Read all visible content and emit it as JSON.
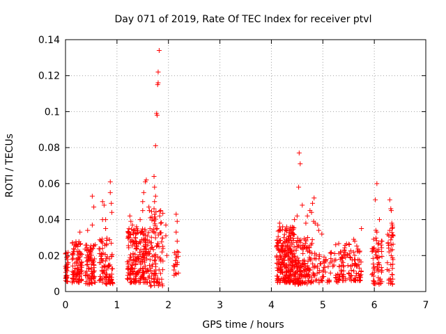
{
  "chart_data": {
    "type": "scatter",
    "title": "Day 071 of 2019, Rate Of TEC Index for receiver ptvl",
    "xlabel": "GPS time / hours",
    "ylabel": "ROTI / TECUs",
    "xlim": [
      0,
      7
    ],
    "ylim": [
      0,
      0.14
    ],
    "xticks": [
      "0",
      "1",
      "2",
      "3",
      "4",
      "5",
      "6",
      "7"
    ],
    "yticks": [
      "0",
      "0.02",
      "0.04",
      "0.06",
      "0.08",
      "0.1",
      "0.12",
      "0.14"
    ],
    "grid": true,
    "marker": "+",
    "color": "#ff0000",
    "clusters": [
      {
        "x": [
          0.0,
          0.05
        ],
        "y": [
          0.005,
          0.022
        ],
        "n": 30
      },
      {
        "x": [
          0.12,
          0.32
        ],
        "y": [
          0.005,
          0.028
        ],
        "n": 90
      },
      {
        "x": [
          0.38,
          0.58
        ],
        "y": [
          0.004,
          0.026
        ],
        "n": 80
      },
      {
        "x": [
          0.65,
          0.92
        ],
        "y": [
          0.004,
          0.03
        ],
        "n": 90
      },
      {
        "x": [
          1.2,
          1.65
        ],
        "y": [
          0.005,
          0.035
        ],
        "n": 220
      },
      {
        "x": [
          1.65,
          1.9
        ],
        "y": [
          0.003,
          0.045
        ],
        "n": 90
      },
      {
        "x": [
          2.1,
          2.2
        ],
        "y": [
          0.009,
          0.025
        ],
        "n": 18
      },
      {
        "x": [
          4.1,
          4.45
        ],
        "y": [
          0.005,
          0.036
        ],
        "n": 240
      },
      {
        "x": [
          4.45,
          4.85
        ],
        "y": [
          0.004,
          0.03
        ],
        "n": 160
      },
      {
        "x": [
          4.85,
          5.3
        ],
        "y": [
          0.005,
          0.022
        ],
        "n": 60
      },
      {
        "x": [
          5.3,
          5.75
        ],
        "y": [
          0.006,
          0.028
        ],
        "n": 110
      },
      {
        "x": [
          5.95,
          6.15
        ],
        "y": [
          0.004,
          0.03
        ],
        "n": 60
      },
      {
        "x": [
          6.25,
          6.38
        ],
        "y": [
          0.004,
          0.036
        ],
        "n": 40
      }
    ],
    "points": [
      [
        0.0,
        0.014
      ],
      [
        0.02,
        0.019
      ],
      [
        0.0,
        0.021
      ],
      [
        0.03,
        0.009
      ],
      [
        0.02,
        0.012
      ],
      [
        0.28,
        0.033
      ],
      [
        0.43,
        0.034
      ],
      [
        0.52,
        0.053
      ],
      [
        0.55,
        0.047
      ],
      [
        0.52,
        0.037
      ],
      [
        0.72,
        0.05
      ],
      [
        0.75,
        0.048
      ],
      [
        0.72,
        0.04
      ],
      [
        0.78,
        0.035
      ],
      [
        0.78,
        0.04
      ],
      [
        0.87,
        0.061
      ],
      [
        0.87,
        0.055
      ],
      [
        0.89,
        0.049
      ],
      [
        0.9,
        0.044
      ],
      [
        1.25,
        0.042
      ],
      [
        1.27,
        0.039
      ],
      [
        1.3,
        0.037
      ],
      [
        1.38,
        0.036
      ],
      [
        1.45,
        0.04
      ],
      [
        1.5,
        0.045
      ],
      [
        1.5,
        0.05
      ],
      [
        1.52,
        0.055
      ],
      [
        1.55,
        0.061
      ],
      [
        1.57,
        0.062
      ],
      [
        1.62,
        0.047
      ],
      [
        1.63,
        0.045
      ],
      [
        1.65,
        0.041
      ],
      [
        1.72,
        0.064
      ],
      [
        1.73,
        0.058
      ],
      [
        1.75,
        0.053
      ],
      [
        1.73,
        0.05
      ],
      [
        1.72,
        0.046
      ],
      [
        1.75,
        0.081
      ],
      [
        1.77,
        0.099
      ],
      [
        1.78,
        0.098
      ],
      [
        1.79,
        0.115
      ],
      [
        1.8,
        0.116
      ],
      [
        1.8,
        0.122
      ],
      [
        1.82,
        0.134
      ],
      [
        1.83,
        0.042
      ],
      [
        1.85,
        0.045
      ],
      [
        1.85,
        0.038
      ],
      [
        1.95,
        0.031
      ],
      [
        1.95,
        0.037
      ],
      [
        1.97,
        0.02
      ],
      [
        2.15,
        0.043
      ],
      [
        2.17,
        0.039
      ],
      [
        2.15,
        0.033
      ],
      [
        2.17,
        0.028
      ],
      [
        4.16,
        0.038
      ],
      [
        4.22,
        0.036
      ],
      [
        4.3,
        0.035
      ],
      [
        4.35,
        0.034
      ],
      [
        4.42,
        0.032
      ],
      [
        4.45,
        0.04
      ],
      [
        4.5,
        0.042
      ],
      [
        4.53,
        0.058
      ],
      [
        4.54,
        0.077
      ],
      [
        4.56,
        0.071
      ],
      [
        4.6,
        0.048
      ],
      [
        4.67,
        0.038
      ],
      [
        4.7,
        0.042
      ],
      [
        4.75,
        0.045
      ],
      [
        4.78,
        0.044
      ],
      [
        4.8,
        0.049
      ],
      [
        4.83,
        0.052
      ],
      [
        4.82,
        0.039
      ],
      [
        4.85,
        0.038
      ],
      [
        4.9,
        0.037
      ],
      [
        4.92,
        0.034
      ],
      [
        4.98,
        0.032
      ],
      [
        5.25,
        0.026
      ],
      [
        5.35,
        0.022
      ],
      [
        5.6,
        0.029
      ],
      [
        5.62,
        0.028
      ],
      [
        5.75,
        0.035
      ],
      [
        6.02,
        0.051
      ],
      [
        6.05,
        0.06
      ],
      [
        6.03,
        0.034
      ],
      [
        6.1,
        0.04
      ],
      [
        6.05,
        0.033
      ],
      [
        6.3,
        0.051
      ],
      [
        6.32,
        0.046
      ],
      [
        6.33,
        0.045
      ],
      [
        6.35,
        0.037
      ],
      [
        6.34,
        0.038
      ],
      [
        6.3,
        0.034
      ],
      [
        6.28,
        0.031
      ]
    ]
  }
}
